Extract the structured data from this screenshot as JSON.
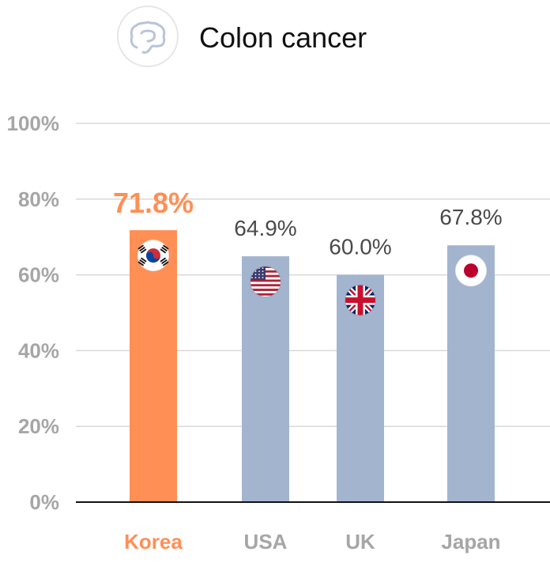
{
  "title": "Colon cancer",
  "icon": "colon-organ-icon",
  "colors": {
    "highlight": "#ff8f55",
    "bar": "#a3b4cf",
    "grid": "#d9d9d9",
    "axis": "#111111",
    "tick": "#a6a6a6",
    "label": "#4a4a4a"
  },
  "chart_data": {
    "type": "bar",
    "title": "Colon cancer",
    "categories": [
      "Korea",
      "USA",
      "UK",
      "Japan"
    ],
    "values": [
      71.8,
      64.9,
      60.0,
      67.8
    ],
    "value_labels": [
      "71.8%",
      "64.9%",
      "60.0%",
      "67.8%"
    ],
    "highlight": "Korea",
    "flags": [
      "korea-flag-icon",
      "usa-flag-icon",
      "uk-flag-icon",
      "japan-flag-icon"
    ],
    "ylim": [
      0,
      100
    ],
    "yticks": [
      0,
      20,
      40,
      60,
      80,
      100
    ],
    "ytick_labels": [
      "0%",
      "20%",
      "40%",
      "60%",
      "80%",
      "100%"
    ],
    "xlabel": "",
    "ylabel": "",
    "grid": true,
    "legend": "none"
  }
}
